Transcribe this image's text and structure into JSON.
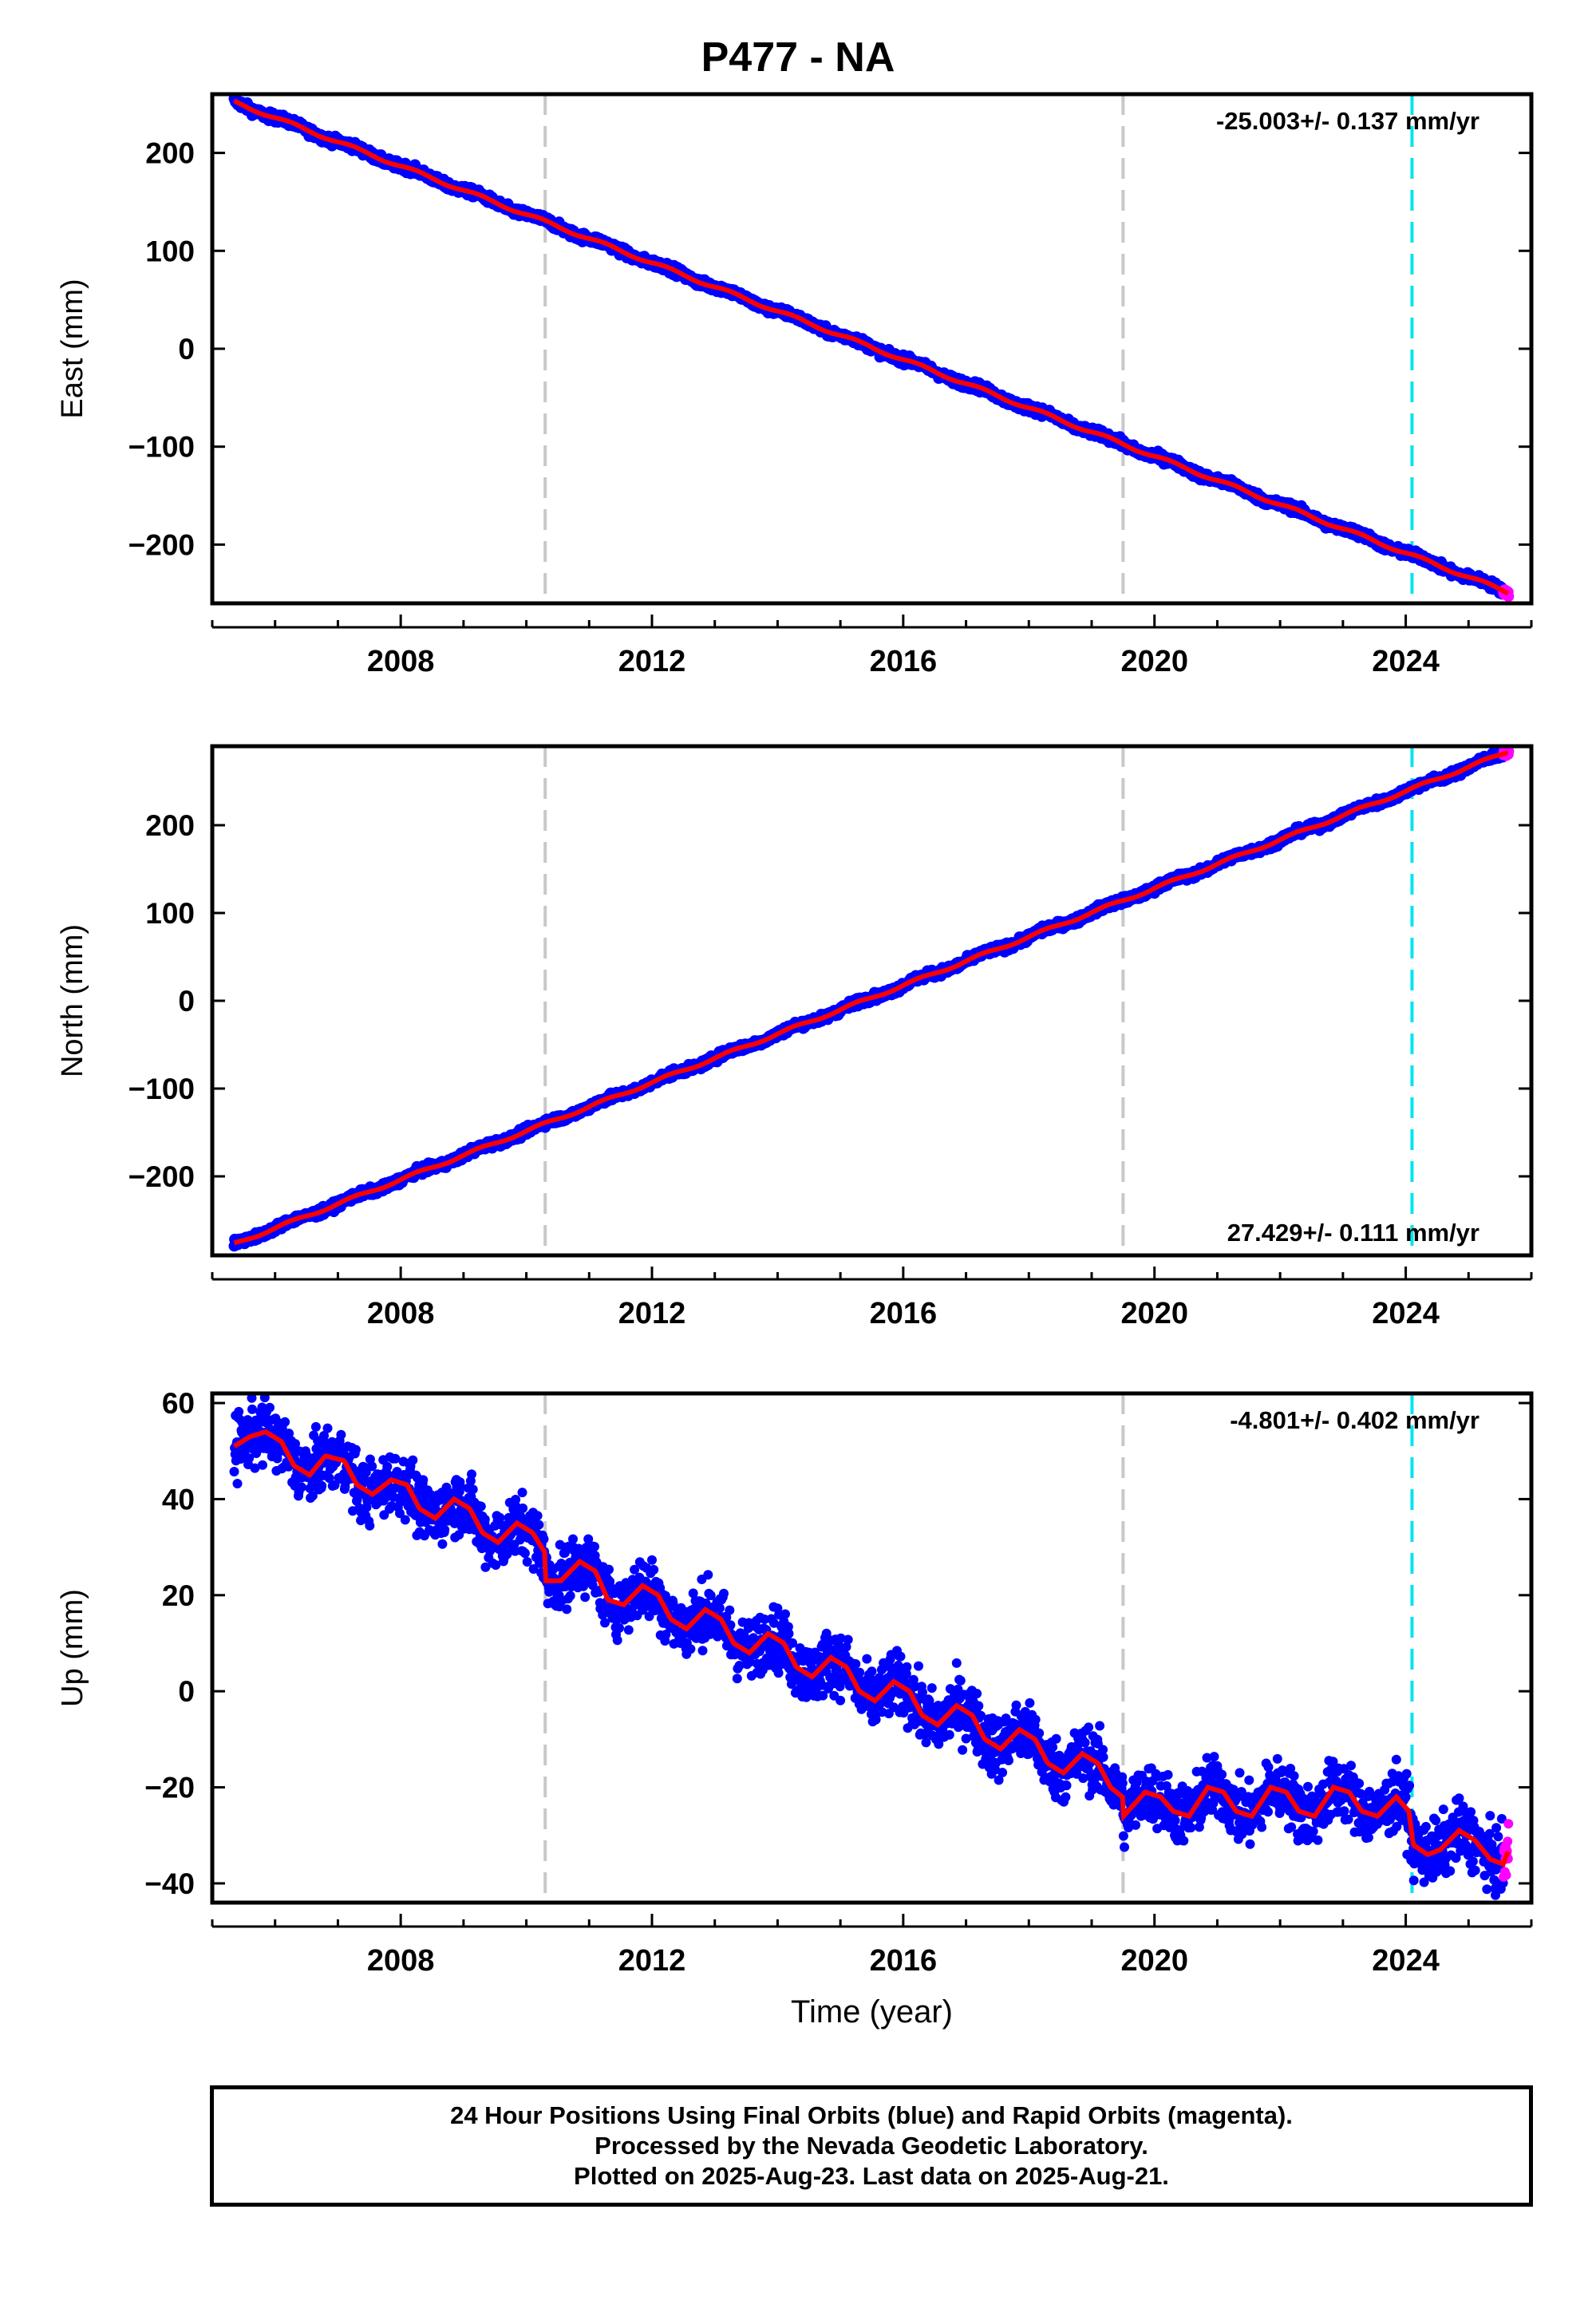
{
  "title": "P477 - NA",
  "colors": {
    "final_orbits": "#0000ff",
    "rapid_orbits": "#ff00ff",
    "model": "#ff0000",
    "equipment_change": "#c8c8c8",
    "earthquake": "#00e5ee",
    "frame": "#000000"
  },
  "chart_data": [
    {
      "type": "scatter",
      "component": "East",
      "ylabel": "East (mm)",
      "xlabel": "",
      "rate_text": "-25.003+/- 0.137 mm/yr",
      "rate_position": "top-right",
      "xlim": [
        2005.0,
        2026.0
      ],
      "ylim": [
        -260,
        260
      ],
      "xticks": [
        2008,
        2012,
        2016,
        2020,
        2024
      ],
      "yticks": [
        -200,
        -100,
        0,
        100,
        200
      ],
      "grid": false,
      "trend": {
        "start": [
          2005.35,
          252
        ],
        "end": [
          2025.64,
          -249
        ],
        "rate_mm_per_yr": -25.003,
        "scatter_mm": 3
      },
      "equipment_changes": [
        2010.3,
        2019.5
      ],
      "earthquakes": [
        2024.1
      ],
      "rapid_data_start": 2025.55
    },
    {
      "type": "scatter",
      "component": "North",
      "ylabel": "North (mm)",
      "xlabel": "",
      "rate_text": "27.429+/- 0.111 mm/yr",
      "rate_position": "bottom-right",
      "xlim": [
        2005.0,
        2026.0
      ],
      "ylim": [
        -290,
        290
      ],
      "xticks": [
        2008,
        2012,
        2016,
        2020,
        2024
      ],
      "yticks": [
        -200,
        -100,
        0,
        100,
        200
      ],
      "grid": false,
      "trend": {
        "start": [
          2005.35,
          -277
        ],
        "end": [
          2025.64,
          284
        ],
        "rate_mm_per_yr": 27.429,
        "scatter_mm": 3
      },
      "equipment_changes": [
        2010.3,
        2019.5
      ],
      "earthquakes": [
        2024.1
      ],
      "rapid_data_start": 2025.55
    },
    {
      "type": "scatter",
      "component": "Up",
      "ylabel": "Up (mm)",
      "xlabel": "Time (year)",
      "rate_text": "-4.801+/- 0.402 mm/yr",
      "rate_position": "top-right",
      "xlim": [
        2005.0,
        2026.0
      ],
      "ylim": [
        -44,
        62
      ],
      "xticks": [
        2008,
        2012,
        2016,
        2020,
        2024
      ],
      "yticks": [
        -40,
        -20,
        0,
        20,
        40,
        60
      ],
      "grid": false,
      "model_curve": [
        [
          2005.35,
          51
        ],
        [
          2005.6,
          53
        ],
        [
          2005.85,
          54
        ],
        [
          2006.1,
          52
        ],
        [
          2006.3,
          47
        ],
        [
          2006.55,
          45
        ],
        [
          2006.8,
          49
        ],
        [
          2007.1,
          48
        ],
        [
          2007.3,
          43
        ],
        [
          2007.55,
          41
        ],
        [
          2007.85,
          44
        ],
        [
          2008.1,
          43
        ],
        [
          2008.3,
          38
        ],
        [
          2008.55,
          36
        ],
        [
          2008.85,
          40
        ],
        [
          2009.1,
          38
        ],
        [
          2009.3,
          33
        ],
        [
          2009.55,
          31
        ],
        [
          2009.85,
          35
        ],
        [
          2010.1,
          33
        ],
        [
          2010.29,
          29
        ],
        [
          2010.31,
          23
        ],
        [
          2010.55,
          23
        ],
        [
          2010.85,
          27
        ],
        [
          2011.1,
          25
        ],
        [
          2011.3,
          19
        ],
        [
          2011.55,
          18
        ],
        [
          2011.85,
          22
        ],
        [
          2012.1,
          20
        ],
        [
          2012.3,
          15
        ],
        [
          2012.55,
          13
        ],
        [
          2012.85,
          17
        ],
        [
          2013.1,
          15
        ],
        [
          2013.3,
          10
        ],
        [
          2013.55,
          8
        ],
        [
          2013.85,
          12
        ],
        [
          2014.1,
          10
        ],
        [
          2014.3,
          5
        ],
        [
          2014.55,
          3
        ],
        [
          2014.85,
          7
        ],
        [
          2015.1,
          5
        ],
        [
          2015.3,
          0
        ],
        [
          2015.55,
          -2
        ],
        [
          2015.85,
          2
        ],
        [
          2016.1,
          0
        ],
        [
          2016.3,
          -5
        ],
        [
          2016.55,
          -7
        ],
        [
          2016.85,
          -3
        ],
        [
          2017.1,
          -5
        ],
        [
          2017.3,
          -10
        ],
        [
          2017.55,
          -12
        ],
        [
          2017.85,
          -8
        ],
        [
          2018.1,
          -10
        ],
        [
          2018.3,
          -15
        ],
        [
          2018.55,
          -17
        ],
        [
          2018.85,
          -13
        ],
        [
          2019.1,
          -15
        ],
        [
          2019.3,
          -20
        ],
        [
          2019.49,
          -22
        ],
        [
          2019.51,
          -26
        ],
        [
          2019.85,
          -21
        ],
        [
          2020.1,
          -22
        ],
        [
          2020.3,
          -25
        ],
        [
          2020.55,
          -26
        ],
        [
          2020.85,
          -20
        ],
        [
          2021.1,
          -21
        ],
        [
          2021.3,
          -25
        ],
        [
          2021.55,
          -26
        ],
        [
          2021.85,
          -20
        ],
        [
          2022.1,
          -21
        ],
        [
          2022.3,
          -25
        ],
        [
          2022.55,
          -26
        ],
        [
          2022.85,
          -20
        ],
        [
          2023.1,
          -21
        ],
        [
          2023.3,
          -25
        ],
        [
          2023.55,
          -26
        ],
        [
          2023.85,
          -22
        ],
        [
          2024.05,
          -25
        ],
        [
          2024.12,
          -32
        ],
        [
          2024.35,
          -34
        ],
        [
          2024.55,
          -33
        ],
        [
          2024.85,
          -29
        ],
        [
          2025.1,
          -31
        ],
        [
          2025.35,
          -35
        ],
        [
          2025.55,
          -36
        ],
        [
          2025.64,
          -33
        ]
      ],
      "scatter_mm": 4.5,
      "equipment_changes": [
        2010.3,
        2019.5
      ],
      "earthquakes": [
        2024.1
      ],
      "rapid_data_start": 2025.55
    }
  ],
  "footer": {
    "line1": "24 Hour Positions Using Final Orbits (blue) and Rapid Orbits (magenta).",
    "line2": "Processed by the Nevada Geodetic Laboratory.",
    "line3": "Plotted on 2025-Aug-23. Last data on 2025-Aug-21."
  }
}
